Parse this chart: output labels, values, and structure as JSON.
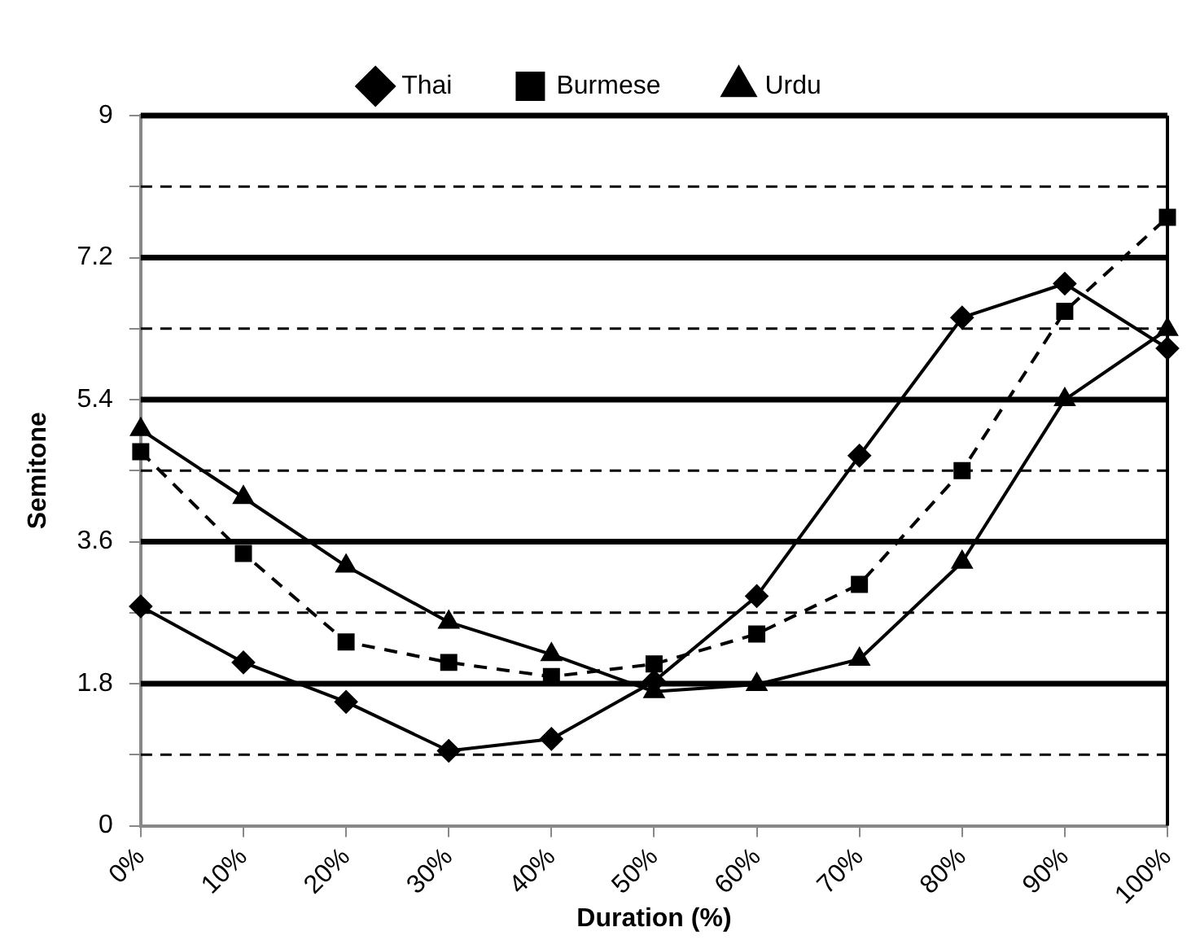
{
  "chart_data": {
    "type": "line",
    "xlabel": "Duration (%)",
    "ylabel": "Semitone",
    "categories": [
      "0%",
      "10%",
      "20%",
      "30%",
      "40%",
      "50%",
      "60%",
      "70%",
      "80%",
      "90%",
      "100%"
    ],
    "series": [
      {
        "name": "Thai",
        "color": "#000000",
        "marker": "diamond",
        "line_style": "solid",
        "values": [
          2.78,
          2.07,
          1.57,
          0.95,
          1.1,
          1.83,
          2.91,
          4.69,
          6.44,
          6.87,
          6.05
        ]
      },
      {
        "name": "Burmese",
        "color": "#000000",
        "marker": "square",
        "line_style": "dashed",
        "values": [
          4.74,
          3.45,
          2.33,
          2.07,
          1.89,
          2.05,
          2.43,
          3.06,
          4.5,
          6.52,
          7.71
        ]
      },
      {
        "name": "Urdu",
        "color": "#000000",
        "marker": "triangle",
        "line_style": "solid",
        "values": [
          5.02,
          4.16,
          3.29,
          2.58,
          2.17,
          1.7,
          1.79,
          2.11,
          3.34,
          5.4,
          6.29
        ]
      }
    ],
    "ylim": [
      0,
      9
    ],
    "yticks": [
      0,
      {
        "value": 0.9,
        "label": null
      },
      1.8,
      {
        "value": 2.7,
        "label": null
      },
      3.6,
      {
        "value": 4.5,
        "label": null
      },
      5.4,
      {
        "value": 6.3,
        "label": null
      },
      7.2,
      {
        "value": 8.1,
        "label": null
      },
      9
    ],
    "grid": "y",
    "legend": "top"
  }
}
